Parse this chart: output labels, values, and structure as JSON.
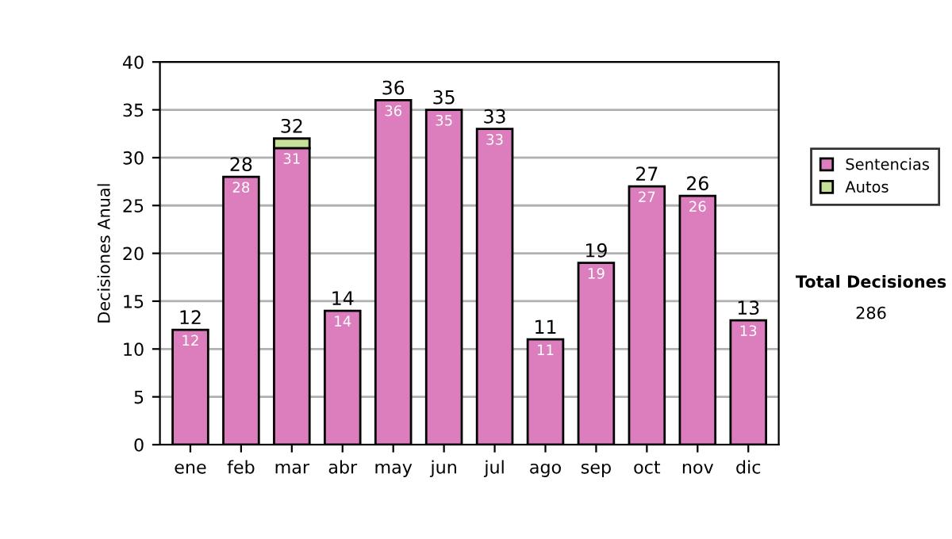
{
  "chart_data": {
    "type": "bar",
    "stacked": true,
    "ylabel": "Decisiones Anual",
    "categories": [
      "ene",
      "feb",
      "mar",
      "abr",
      "may",
      "jun",
      "jul",
      "ago",
      "sep",
      "oct",
      "nov",
      "dic"
    ],
    "series": [
      {
        "name": "Sentencias",
        "color": "#dc7dbe",
        "values": [
          12,
          28,
          31,
          14,
          36,
          35,
          33,
          11,
          19,
          27,
          26,
          13
        ],
        "value_labels": [
          "12",
          "28",
          "31",
          "14",
          "36",
          "35",
          "33",
          "11",
          "19",
          "27",
          "26",
          "13"
        ]
      },
      {
        "name": "Autos",
        "color": "#c6e09a",
        "values": [
          null,
          null,
          1,
          null,
          null,
          null,
          null,
          null,
          null,
          null,
          null,
          null
        ]
      }
    ],
    "totals": [
      "12",
      "28",
      "32",
      "14",
      "36",
      "35",
      "33",
      "11",
      "19",
      "27",
      "26",
      "13"
    ],
    "ylim": [
      0,
      40
    ],
    "yticks": [
      0,
      5,
      10,
      15,
      20,
      25,
      30,
      35,
      40
    ],
    "grid": "y",
    "legend": "right",
    "annotations": [
      "Total Decisiones",
      "286"
    ]
  }
}
